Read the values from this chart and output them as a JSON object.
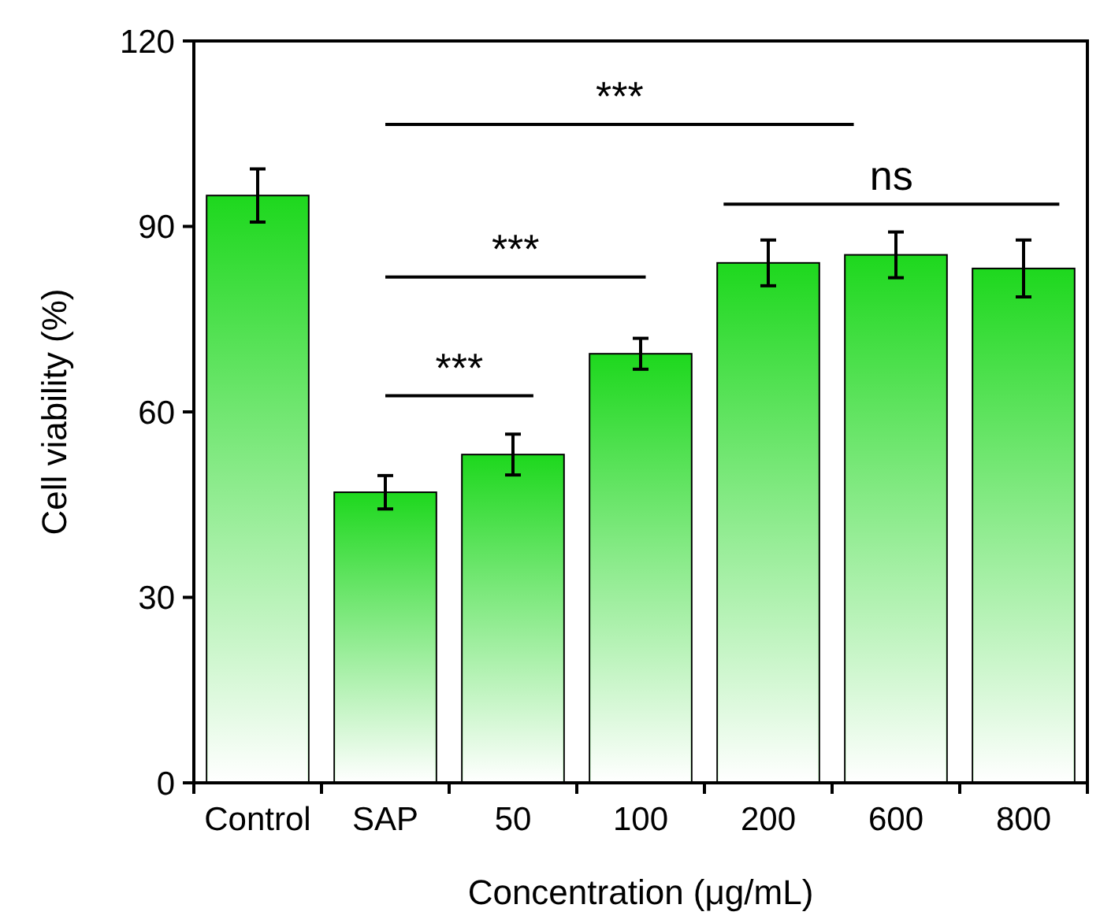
{
  "chart_data": {
    "type": "bar",
    "xlabel": "Concentration (μg/mL)",
    "ylabel": "Cell viability (%)",
    "categories": [
      "Control",
      "SAP",
      "50",
      "100",
      "200",
      "600",
      "800"
    ],
    "values": [
      95,
      47,
      53.1,
      69.4,
      84.1,
      85.4,
      83.2
    ],
    "errors": [
      4.3,
      2.7,
      3.3,
      2.5,
      3.7,
      3.7,
      4.6
    ],
    "color": "#1ed81e",
    "ylim": [
      0,
      120
    ],
    "yticks": [
      0,
      30,
      60,
      90,
      120
    ],
    "grid": false,
    "annotations": [
      "***",
      "ns",
      "***",
      "***"
    ]
  }
}
